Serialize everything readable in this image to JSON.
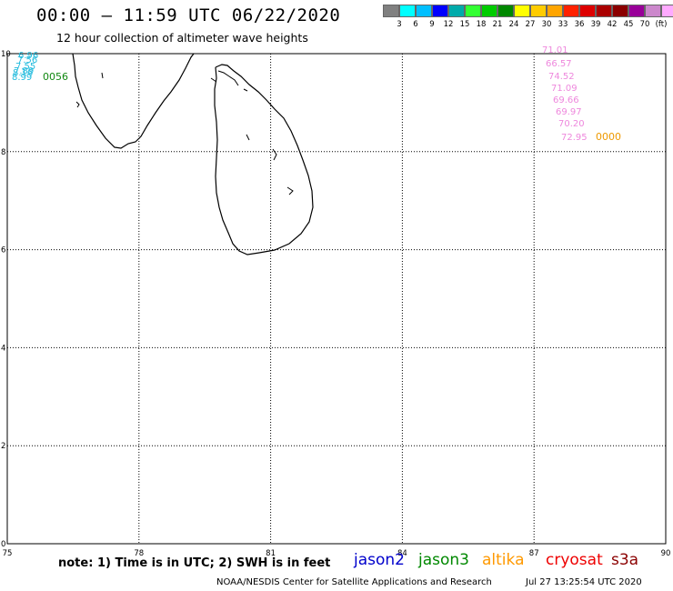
{
  "header": {
    "title": "00:00 – 11:59 UTC 06/22/2020",
    "subtitle": "12 hour collection of altimeter wave heights"
  },
  "color_scale": {
    "colors": [
      "#808080",
      "#00ffff",
      "#00bfff",
      "#0000ff",
      "#00aaaa",
      "#33ff33",
      "#00cc00",
      "#008800",
      "#ffff00",
      "#ffcc00",
      "#ffa500",
      "#ff2200",
      "#dd0000",
      "#aa0000",
      "#8b0000",
      "#990099",
      "#cc88cc",
      "#ffaaff",
      "#000000"
    ],
    "labels": [
      "3",
      "6",
      "9",
      "12",
      "15",
      "18",
      "21",
      "24",
      "27",
      "30",
      "33",
      "36",
      "39",
      "42",
      "45",
      "70",
      "(ft)"
    ]
  },
  "axes": {
    "x_ticks": [
      "75",
      "78",
      "81",
      "84",
      "87",
      "90"
    ],
    "y_ticks": [
      "10",
      "8",
      "6",
      "4",
      "2",
      "0"
    ],
    "x_range": [
      75,
      90
    ],
    "y_range": [
      0,
      10
    ],
    "grid": true
  },
  "observations": {
    "west_cluster": {
      "color": "#22bbdd",
      "values": [
        "6.96",
        "7.56",
        "7.55",
        "7.89",
        "8.16",
        "8.99"
      ]
    },
    "west_time": {
      "text": "0056",
      "color": "#118811"
    },
    "east_cluster": {
      "color": "#ee88dd",
      "values": [
        "71.01",
        "66.57",
        "74.52",
        "71.09",
        "69.66",
        "69.97",
        "70.20",
        "72.95"
      ]
    },
    "east_time": {
      "text": "0000",
      "color": "#ee9900"
    }
  },
  "footer": {
    "note": "note:  1) Time is in UTC;  2) SWH is in feet",
    "satellites": [
      {
        "name": "jason2",
        "color": "#0000cc"
      },
      {
        "name": "jason3",
        "color": "#008800"
      },
      {
        "name": "altika",
        "color": "#ff9900"
      },
      {
        "name": "cryosat",
        "color": "#ee0000"
      },
      {
        "name": "s3a",
        "color": "#8b0000"
      }
    ],
    "credit": "NOAA/NESDIS Center for Satellite Applications and Research",
    "timestamp": "Jul 27 13:25:54 UTC 2020"
  }
}
